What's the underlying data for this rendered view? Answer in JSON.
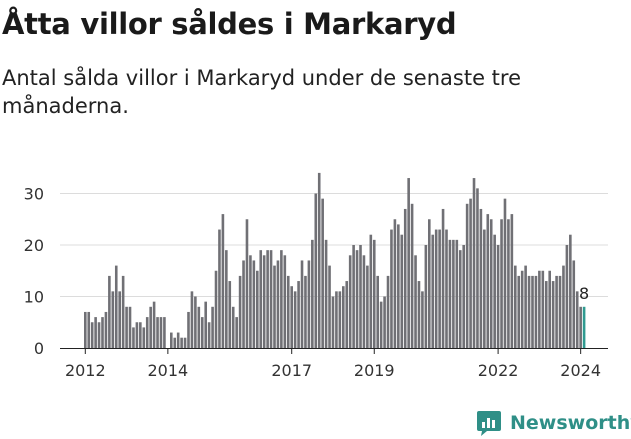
{
  "title": "Åtta villor såldes i Markaryd",
  "subtitle": "Antal sålda villor i Markaryd under de senaste tre månaderna.",
  "brand": {
    "name": "Newsworthy"
  },
  "colors": {
    "bar": "#707075",
    "highlight": "#2f9a90",
    "grid": "#dcdcdc",
    "text": "#333333"
  },
  "chart_data": {
    "type": "bar",
    "ylim": [
      0,
      35
    ],
    "yticks": [
      0,
      10,
      20,
      30
    ],
    "xticks": [
      "2012",
      "2014",
      "2017",
      "2019",
      "2022",
      "2024"
    ],
    "grid": true,
    "last_label": "8",
    "values": [
      7,
      7,
      5,
      6,
      5,
      6,
      7,
      14,
      11,
      16,
      11,
      14,
      8,
      8,
      4,
      5,
      5,
      4,
      6,
      8,
      9,
      6,
      6,
      6,
      0,
      3,
      2,
      3,
      2,
      2,
      7,
      11,
      10,
      8,
      6,
      9,
      5,
      8,
      15,
      23,
      26,
      19,
      13,
      8,
      6,
      14,
      17,
      25,
      18,
      17,
      15,
      19,
      18,
      19,
      19,
      16,
      17,
      19,
      18,
      14,
      12,
      11,
      13,
      17,
      14,
      17,
      21,
      30,
      34,
      29,
      21,
      16,
      10,
      11,
      11,
      12,
      13,
      18,
      20,
      19,
      20,
      18,
      16,
      22,
      21,
      14,
      9,
      10,
      14,
      23,
      25,
      24,
      22,
      27,
      33,
      28,
      18,
      13,
      11,
      20,
      25,
      22,
      23,
      23,
      27,
      23,
      21,
      21,
      21,
      19,
      20,
      28,
      29,
      33,
      31,
      27,
      23,
      26,
      25,
      22,
      20,
      25,
      29,
      25,
      26,
      16,
      14,
      15,
      16,
      14,
      14,
      14,
      15,
      15,
      13,
      15,
      13,
      14,
      14,
      16,
      20,
      22,
      17,
      11,
      8,
      8
    ]
  }
}
